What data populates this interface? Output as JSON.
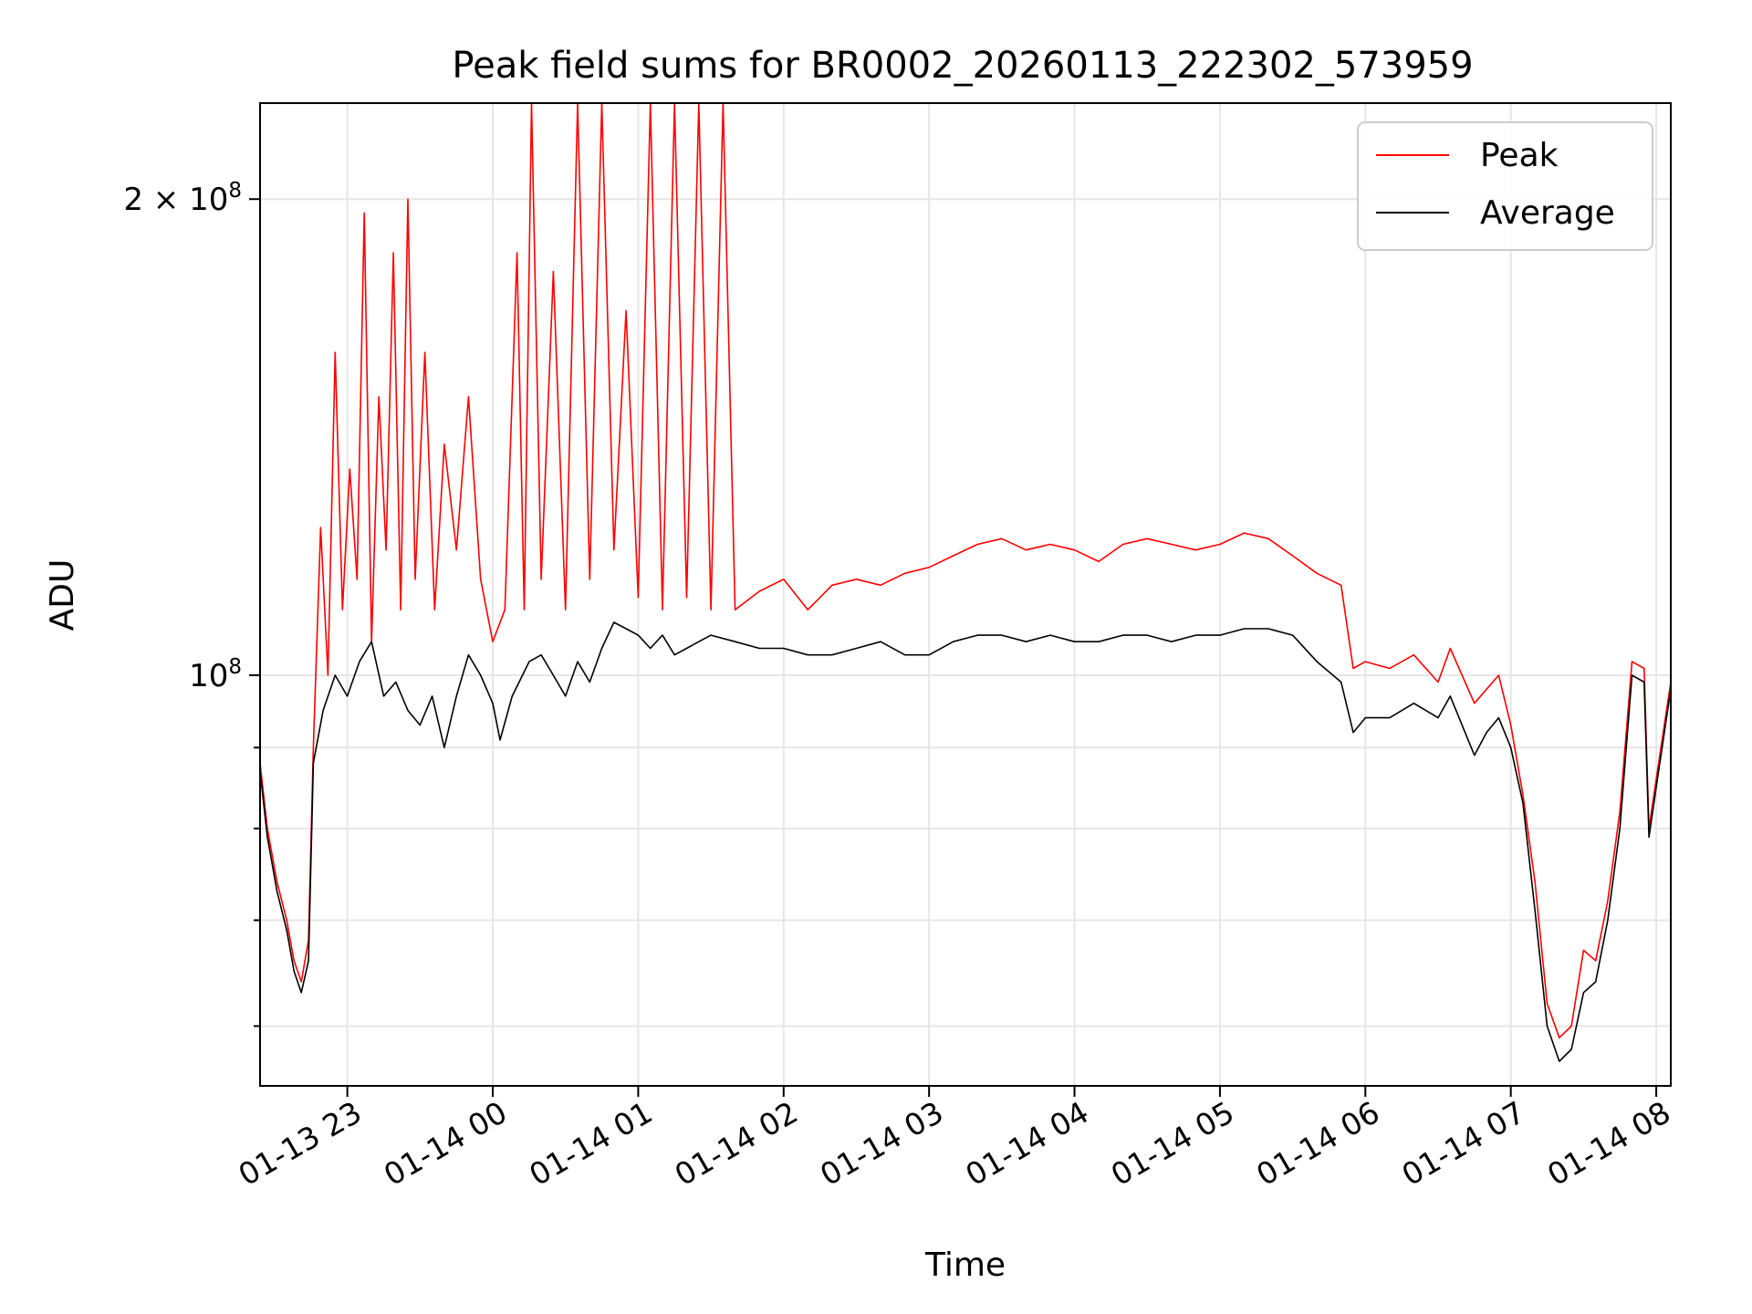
{
  "chart_data": {
    "type": "line",
    "title": "Peak field sums for BR0002_20260113_222302_573959",
    "xlabel": "Time",
    "ylabel": "ADU",
    "y_scale": "log",
    "ylim": [
      55000000,
      230000000
    ],
    "xlim": [
      "01-13 22:24",
      "01-14 08:06"
    ],
    "grid": true,
    "legend_position": "top-right",
    "x_ticks": [
      "01-13 23",
      "01-14 00",
      "01-14 01",
      "01-14 02",
      "01-14 03",
      "01-14 04",
      "01-14 05",
      "01-14 06",
      "01-14 07",
      "01-14 08"
    ],
    "y_ticks": [
      {
        "value": 100000000,
        "mantissa": "",
        "exponent": "8"
      },
      {
        "value": 200000000,
        "mantissa": "2",
        "exponent": "8"
      }
    ],
    "y_minor_ticks": [
      60000000,
      70000000,
      80000000,
      90000000
    ],
    "series": [
      {
        "name": "Peak",
        "color": "#ff0000",
        "points": [
          [
            "01-13 22:24",
            88000000
          ],
          [
            "01-13 22:27",
            80000000
          ],
          [
            "01-13 22:31",
            74000000
          ],
          [
            "01-13 22:35",
            70000000
          ],
          [
            "01-13 22:38",
            66000000
          ],
          [
            "01-13 22:41",
            64000000
          ],
          [
            "01-13 22:44",
            68000000
          ],
          [
            "01-13 22:46",
            90000000
          ],
          [
            "01-13 22:49",
            124000000
          ],
          [
            "01-13 22:52",
            100000000
          ],
          [
            "01-13 22:55",
            160000000
          ],
          [
            "01-13 22:58",
            110000000
          ],
          [
            "01-13 23:01",
            135000000
          ],
          [
            "01-13 23:04",
            115000000
          ],
          [
            "01-13 23:07",
            196000000
          ],
          [
            "01-13 23:10",
            105000000
          ],
          [
            "01-13 23:13",
            150000000
          ],
          [
            "01-13 23:16",
            120000000
          ],
          [
            "01-13 23:19",
            185000000
          ],
          [
            "01-13 23:22",
            110000000
          ],
          [
            "01-13 23:25",
            200000000
          ],
          [
            "01-13 23:28",
            115000000
          ],
          [
            "01-13 23:32",
            160000000
          ],
          [
            "01-13 23:36",
            110000000
          ],
          [
            "01-13 23:40",
            140000000
          ],
          [
            "01-13 23:45",
            120000000
          ],
          [
            "01-13 23:50",
            150000000
          ],
          [
            "01-13 23:55",
            115000000
          ],
          [
            "01-14 00:00",
            105000000
          ],
          [
            "01-14 00:05",
            110000000
          ],
          [
            "01-14 00:10",
            185000000
          ],
          [
            "01-14 00:13",
            110000000
          ],
          [
            "01-14 00:16",
            230000000
          ],
          [
            "01-14 00:20",
            115000000
          ],
          [
            "01-14 00:25",
            180000000
          ],
          [
            "01-14 00:30",
            110000000
          ],
          [
            "01-14 00:35",
            230000000
          ],
          [
            "01-14 00:40",
            115000000
          ],
          [
            "01-14 00:45",
            230000000
          ],
          [
            "01-14 00:50",
            120000000
          ],
          [
            "01-14 00:55",
            170000000
          ],
          [
            "01-14 01:00",
            112000000
          ],
          [
            "01-14 01:05",
            230000000
          ],
          [
            "01-14 01:10",
            110000000
          ],
          [
            "01-14 01:15",
            230000000
          ],
          [
            "01-14 01:20",
            112000000
          ],
          [
            "01-14 01:25",
            230000000
          ],
          [
            "01-14 01:30",
            110000000
          ],
          [
            "01-14 01:35",
            230000000
          ],
          [
            "01-14 01:40",
            110000000
          ],
          [
            "01-14 01:50",
            113000000
          ],
          [
            "01-14 02:00",
            115000000
          ],
          [
            "01-14 02:10",
            110000000
          ],
          [
            "01-14 02:20",
            114000000
          ],
          [
            "01-14 02:30",
            115000000
          ],
          [
            "01-14 02:40",
            114000000
          ],
          [
            "01-14 02:50",
            116000000
          ],
          [
            "01-14 03:00",
            117000000
          ],
          [
            "01-14 03:10",
            119000000
          ],
          [
            "01-14 03:20",
            121000000
          ],
          [
            "01-14 03:30",
            122000000
          ],
          [
            "01-14 03:40",
            120000000
          ],
          [
            "01-14 03:50",
            121000000
          ],
          [
            "01-14 04:00",
            120000000
          ],
          [
            "01-14 04:10",
            118000000
          ],
          [
            "01-14 04:20",
            121000000
          ],
          [
            "01-14 04:30",
            122000000
          ],
          [
            "01-14 04:40",
            121000000
          ],
          [
            "01-14 04:50",
            120000000
          ],
          [
            "01-14 05:00",
            121000000
          ],
          [
            "01-14 05:10",
            123000000
          ],
          [
            "01-14 05:20",
            122000000
          ],
          [
            "01-14 05:30",
            119000000
          ],
          [
            "01-14 05:40",
            116000000
          ],
          [
            "01-14 05:50",
            114000000
          ],
          [
            "01-14 05:55",
            101000000
          ],
          [
            "01-14 06:00",
            102000000
          ],
          [
            "01-14 06:10",
            101000000
          ],
          [
            "01-14 06:20",
            103000000
          ],
          [
            "01-14 06:30",
            99000000
          ],
          [
            "01-14 06:35",
            104000000
          ],
          [
            "01-14 06:45",
            96000000
          ],
          [
            "01-14 06:55",
            100000000
          ],
          [
            "01-14 07:00",
            93000000
          ],
          [
            "01-14 07:05",
            84000000
          ],
          [
            "01-14 07:10",
            74000000
          ],
          [
            "01-14 07:15",
            62000000
          ],
          [
            "01-14 07:20",
            59000000
          ],
          [
            "01-14 07:25",
            60000000
          ],
          [
            "01-14 07:30",
            67000000
          ],
          [
            "01-14 07:35",
            66000000
          ],
          [
            "01-14 07:40",
            72000000
          ],
          [
            "01-14 07:45",
            82000000
          ],
          [
            "01-14 07:50",
            102000000
          ],
          [
            "01-14 07:55",
            101000000
          ],
          [
            "01-14 07:57",
            80000000
          ],
          [
            "01-14 08:00",
            86000000
          ],
          [
            "01-14 08:06",
            99000000
          ]
        ]
      },
      {
        "name": "Average",
        "color": "#000000",
        "points": [
          [
            "01-13 22:24",
            87000000
          ],
          [
            "01-13 22:27",
            79000000
          ],
          [
            "01-13 22:31",
            73000000
          ],
          [
            "01-13 22:35",
            69000000
          ],
          [
            "01-13 22:38",
            65000000
          ],
          [
            "01-13 22:41",
            63000000
          ],
          [
            "01-13 22:44",
            66000000
          ],
          [
            "01-13 22:46",
            88000000
          ],
          [
            "01-13 22:50",
            95000000
          ],
          [
            "01-13 22:55",
            100000000
          ],
          [
            "01-13 23:00",
            97000000
          ],
          [
            "01-13 23:05",
            102000000
          ],
          [
            "01-13 23:10",
            105000000
          ],
          [
            "01-13 23:15",
            97000000
          ],
          [
            "01-13 23:20",
            99000000
          ],
          [
            "01-13 23:25",
            95000000
          ],
          [
            "01-13 23:30",
            93000000
          ],
          [
            "01-13 23:35",
            97000000
          ],
          [
            "01-13 23:40",
            90000000
          ],
          [
            "01-13 23:45",
            97000000
          ],
          [
            "01-13 23:50",
            103000000
          ],
          [
            "01-13 23:55",
            100000000
          ],
          [
            "01-14 00:00",
            96000000
          ],
          [
            "01-14 00:03",
            91000000
          ],
          [
            "01-14 00:08",
            97000000
          ],
          [
            "01-14 00:15",
            102000000
          ],
          [
            "01-14 00:20",
            103000000
          ],
          [
            "01-14 00:25",
            100000000
          ],
          [
            "01-14 00:30",
            97000000
          ],
          [
            "01-14 00:35",
            102000000
          ],
          [
            "01-14 00:40",
            99000000
          ],
          [
            "01-14 00:45",
            104000000
          ],
          [
            "01-14 00:50",
            108000000
          ],
          [
            "01-14 00:55",
            107000000
          ],
          [
            "01-14 01:00",
            106000000
          ],
          [
            "01-14 01:05",
            104000000
          ],
          [
            "01-14 01:10",
            106000000
          ],
          [
            "01-14 01:15",
            103000000
          ],
          [
            "01-14 01:20",
            104000000
          ],
          [
            "01-14 01:25",
            105000000
          ],
          [
            "01-14 01:30",
            106000000
          ],
          [
            "01-14 01:40",
            105000000
          ],
          [
            "01-14 01:50",
            104000000
          ],
          [
            "01-14 02:00",
            104000000
          ],
          [
            "01-14 02:10",
            103000000
          ],
          [
            "01-14 02:20",
            103000000
          ],
          [
            "01-14 02:30",
            104000000
          ],
          [
            "01-14 02:40",
            105000000
          ],
          [
            "01-14 02:50",
            103000000
          ],
          [
            "01-14 03:00",
            103000000
          ],
          [
            "01-14 03:10",
            105000000
          ],
          [
            "01-14 03:20",
            106000000
          ],
          [
            "01-14 03:30",
            106000000
          ],
          [
            "01-14 03:40",
            105000000
          ],
          [
            "01-14 03:50",
            106000000
          ],
          [
            "01-14 04:00",
            105000000
          ],
          [
            "01-14 04:10",
            105000000
          ],
          [
            "01-14 04:20",
            106000000
          ],
          [
            "01-14 04:30",
            106000000
          ],
          [
            "01-14 04:40",
            105000000
          ],
          [
            "01-14 04:50",
            106000000
          ],
          [
            "01-14 05:00",
            106000000
          ],
          [
            "01-14 05:10",
            107000000
          ],
          [
            "01-14 05:20",
            107000000
          ],
          [
            "01-14 05:30",
            106000000
          ],
          [
            "01-14 05:40",
            102000000
          ],
          [
            "01-14 05:50",
            99000000
          ],
          [
            "01-14 05:55",
            92000000
          ],
          [
            "01-14 06:00",
            94000000
          ],
          [
            "01-14 06:10",
            94000000
          ],
          [
            "01-14 06:20",
            96000000
          ],
          [
            "01-14 06:30",
            94000000
          ],
          [
            "01-14 06:35",
            97000000
          ],
          [
            "01-14 06:45",
            89000000
          ],
          [
            "01-14 06:50",
            92000000
          ],
          [
            "01-14 06:55",
            94000000
          ],
          [
            "01-14 07:00",
            90000000
          ],
          [
            "01-14 07:05",
            83000000
          ],
          [
            "01-14 07:10",
            71000000
          ],
          [
            "01-14 07:15",
            60000000
          ],
          [
            "01-14 07:20",
            57000000
          ],
          [
            "01-14 07:25",
            58000000
          ],
          [
            "01-14 07:30",
            63000000
          ],
          [
            "01-14 07:35",
            64000000
          ],
          [
            "01-14 07:40",
            70000000
          ],
          [
            "01-14 07:45",
            80000000
          ],
          [
            "01-14 07:50",
            100000000
          ],
          [
            "01-14 07:55",
            99000000
          ],
          [
            "01-14 07:57",
            79000000
          ],
          [
            "01-14 08:00",
            85000000
          ],
          [
            "01-14 08:06",
            98000000
          ]
        ]
      }
    ]
  }
}
